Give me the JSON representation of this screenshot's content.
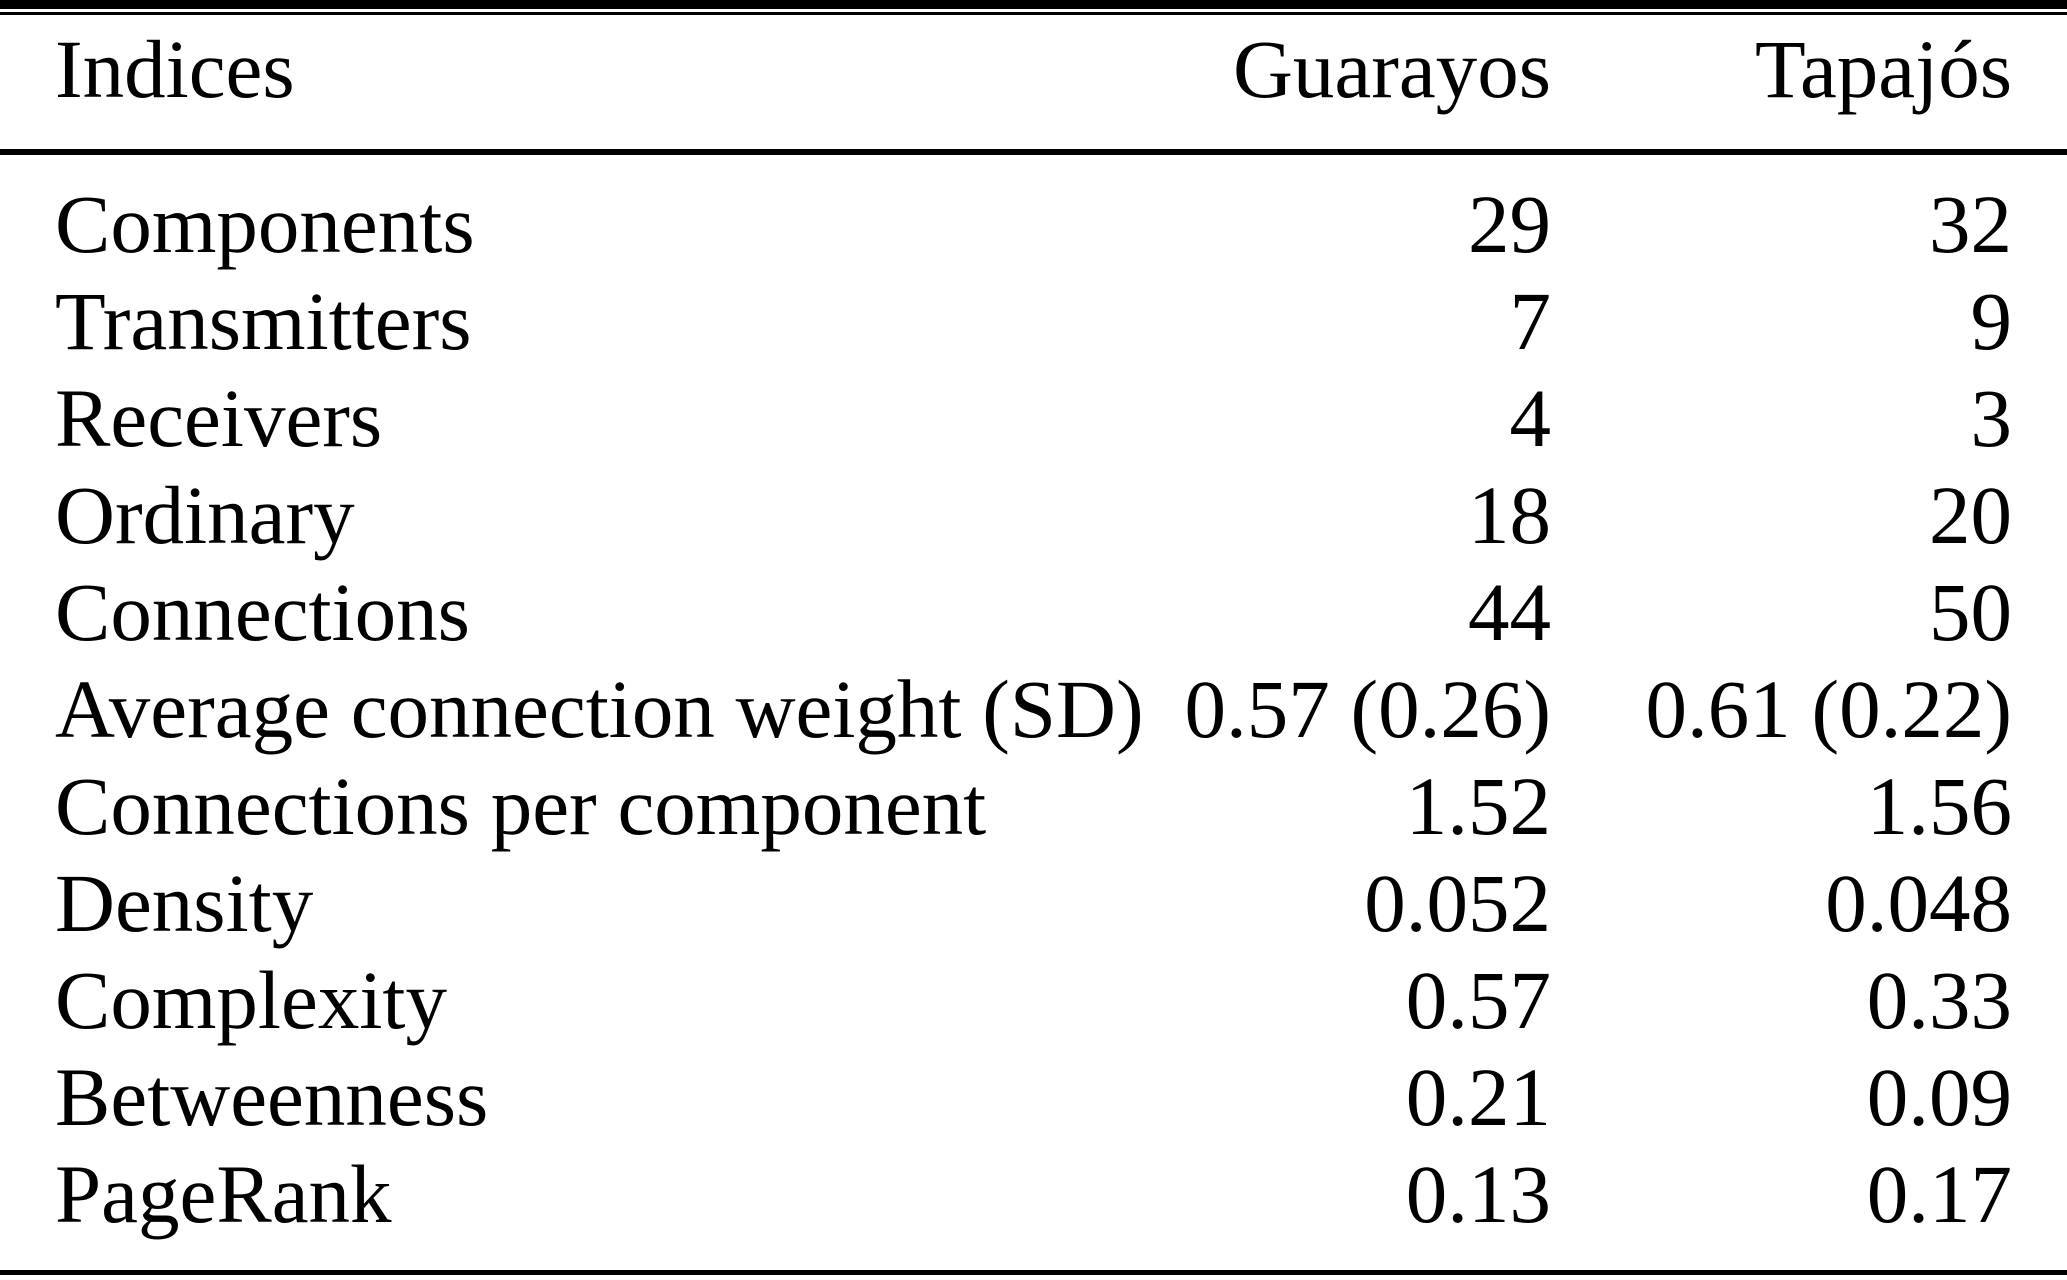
{
  "page": {
    "background": "#ffffff",
    "text_color": "#000000",
    "rule_color": "#000000"
  },
  "table": {
    "header": {
      "indices": "Indices",
      "guarayos": "Guarayos",
      "tapajos": "Tapajós"
    },
    "rows": [
      {
        "label": "Components",
        "guarayos": "29",
        "tapajos": "32"
      },
      {
        "label": "Transmitters",
        "guarayos": "7",
        "tapajos": "9"
      },
      {
        "label": "Receivers",
        "guarayos": "4",
        "tapajos": "3"
      },
      {
        "label": "Ordinary",
        "guarayos": "18",
        "tapajos": "20"
      },
      {
        "label": "Connections",
        "guarayos": "44",
        "tapajos": "50"
      },
      {
        "label": "Average connection weight (SD)",
        "guarayos": "0.57 (0.26)",
        "tapajos": "0.61 (0.22)"
      },
      {
        "label": "Connections per component",
        "guarayos": "1.52",
        "tapajos": "1.56"
      },
      {
        "label": "Density",
        "guarayos": "0.052",
        "tapajos": "0.048"
      },
      {
        "label": "Complexity",
        "guarayos": "0.57",
        "tapajos": "0.33"
      },
      {
        "label": "Betweenness",
        "guarayos": "0.21",
        "tapajos": "0.09"
      },
      {
        "label": "PageRank",
        "guarayos": "0.13",
        "tapajos": "0.17"
      }
    ]
  },
  "chart_data": {
    "type": "table",
    "columns": [
      "Indices",
      "Guarayos",
      "Tapajós"
    ],
    "rows": [
      [
        "Components",
        "29",
        "32"
      ],
      [
        "Transmitters",
        "7",
        "9"
      ],
      [
        "Receivers",
        "4",
        "3"
      ],
      [
        "Ordinary",
        "18",
        "20"
      ],
      [
        "Connections",
        "44",
        "50"
      ],
      [
        "Average connection weight (SD)",
        "0.57 (0.26)",
        "0.61 (0.22)"
      ],
      [
        "Connections per component",
        "1.52",
        "1.56"
      ],
      [
        "Density",
        "0.052",
        "0.048"
      ],
      [
        "Complexity",
        "0.57",
        "0.33"
      ],
      [
        "Betweenness",
        "0.21",
        "0.09"
      ],
      [
        "PageRank",
        "0.13",
        "0.17"
      ]
    ]
  }
}
